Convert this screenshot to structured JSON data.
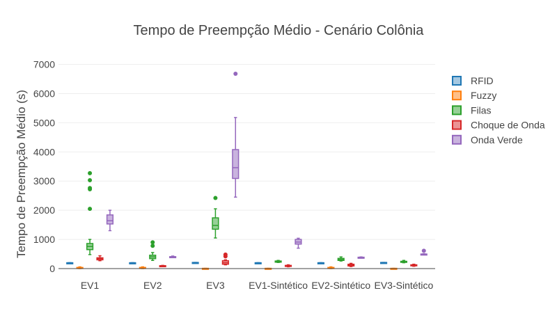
{
  "chart_data": {
    "type": "box",
    "title": "Tempo de Preempção Médio - Cenário Colônia",
    "xlabel": "",
    "ylabel": "Tempo de Preempção Médio (s)",
    "ylim": [
      0,
      7300
    ],
    "yticks": [
      0,
      1000,
      2000,
      3000,
      4000,
      5000,
      6000,
      7000
    ],
    "ytick_labels": [
      "0",
      "1000",
      "2000",
      "3000",
      "4000",
      "5000",
      "6000",
      "7000"
    ],
    "grid": true,
    "legend_position": "top-right",
    "categories": [
      "EV1",
      "EV2",
      "EV3",
      "EV1-Sintético",
      "EV2-Sintético",
      "EV3-Sintético"
    ],
    "series": [
      {
        "name": "RFID",
        "color": "#1f77b4",
        "fill": "#a5c8e1",
        "boxes": [
          {
            "min": 200,
            "q1": 200,
            "median": 200,
            "q3": 200,
            "max": 200,
            "outliers": []
          },
          {
            "min": 200,
            "q1": 200,
            "median": 200,
            "q3": 200,
            "max": 200,
            "outliers": []
          },
          {
            "min": 210,
            "q1": 210,
            "median": 210,
            "q3": 210,
            "max": 210,
            "outliers": []
          },
          {
            "min": 200,
            "q1": 200,
            "median": 200,
            "q3": 200,
            "max": 200,
            "outliers": []
          },
          {
            "min": 200,
            "q1": 200,
            "median": 200,
            "q3": 200,
            "max": 200,
            "outliers": []
          },
          {
            "min": 210,
            "q1": 210,
            "median": 210,
            "q3": 210,
            "max": 210,
            "outliers": []
          }
        ]
      },
      {
        "name": "Fuzzy",
        "color": "#ff7f0e",
        "fill": "#ffbf87",
        "boxes": [
          {
            "min": 0,
            "q1": 10,
            "median": 20,
            "q3": 40,
            "max": 60,
            "outliers": []
          },
          {
            "min": 0,
            "q1": 10,
            "median": 20,
            "q3": 40,
            "max": 60,
            "outliers": []
          },
          {
            "min": 0,
            "q1": 0,
            "median": 5,
            "q3": 10,
            "max": 10,
            "outliers": []
          },
          {
            "min": 0,
            "q1": 0,
            "median": 5,
            "q3": 10,
            "max": 10,
            "outliers": []
          },
          {
            "min": 0,
            "q1": 10,
            "median": 20,
            "q3": 40,
            "max": 60,
            "outliers": []
          },
          {
            "min": 0,
            "q1": 0,
            "median": 5,
            "q3": 10,
            "max": 10,
            "outliers": []
          }
        ]
      },
      {
        "name": "Filas",
        "color": "#2ca02c",
        "fill": "#96d096",
        "boxes": [
          {
            "min": 480,
            "q1": 650,
            "median": 760,
            "q3": 860,
            "max": 1000,
            "outliers": [
              2050,
              2720,
              2760,
              3030,
              3270
            ]
          },
          {
            "min": 280,
            "q1": 340,
            "median": 400,
            "q3": 460,
            "max": 550,
            "outliers": [
              780,
              900
            ]
          },
          {
            "min": 1050,
            "q1": 1350,
            "median": 1480,
            "q3": 1740,
            "max": 2050,
            "outliers": [
              2420
            ]
          },
          {
            "min": 210,
            "q1": 220,
            "median": 240,
            "q3": 260,
            "max": 280,
            "outliers": []
          },
          {
            "min": 260,
            "q1": 280,
            "median": 310,
            "q3": 350,
            "max": 400,
            "outliers": []
          },
          {
            "min": 200,
            "q1": 220,
            "median": 240,
            "q3": 250,
            "max": 280,
            "outliers": []
          }
        ]
      },
      {
        "name": "Choque de Onda",
        "color": "#d62728",
        "fill": "#eb9394",
        "boxes": [
          {
            "min": 270,
            "q1": 300,
            "median": 340,
            "q3": 370,
            "max": 440,
            "outliers": []
          },
          {
            "min": 70,
            "q1": 80,
            "median": 90,
            "q3": 100,
            "max": 110,
            "outliers": []
          },
          {
            "min": 130,
            "q1": 150,
            "median": 200,
            "q3": 270,
            "max": 300,
            "outliers": [
              420,
              480
            ]
          },
          {
            "min": 60,
            "q1": 80,
            "median": 100,
            "q3": 110,
            "max": 130,
            "outliers": []
          },
          {
            "min": 70,
            "q1": 90,
            "median": 120,
            "q3": 150,
            "max": 180,
            "outliers": []
          },
          {
            "min": 80,
            "q1": 100,
            "median": 110,
            "q3": 130,
            "max": 150,
            "outliers": []
          }
        ]
      },
      {
        "name": "Onda Verde",
        "color": "#9467bd",
        "fill": "#c9b3de",
        "boxes": [
          {
            "min": 1300,
            "q1": 1530,
            "median": 1640,
            "q3": 1840,
            "max": 2000,
            "outliers": []
          },
          {
            "min": 380,
            "q1": 390,
            "median": 400,
            "q3": 410,
            "max": 430,
            "outliers": []
          },
          {
            "min": 2450,
            "q1": 3090,
            "median": 3460,
            "q3": 4080,
            "max": 5180,
            "outliers": [
              6680
            ]
          },
          {
            "min": 700,
            "q1": 840,
            "median": 910,
            "q3": 1000,
            "max": 1040,
            "outliers": []
          },
          {
            "min": 370,
            "q1": 380,
            "median": 385,
            "q3": 390,
            "max": 400,
            "outliers": []
          },
          {
            "min": 470,
            "q1": 480,
            "median": 490,
            "q3": 500,
            "max": 510,
            "outliers": [
              610
            ]
          }
        ]
      }
    ]
  }
}
